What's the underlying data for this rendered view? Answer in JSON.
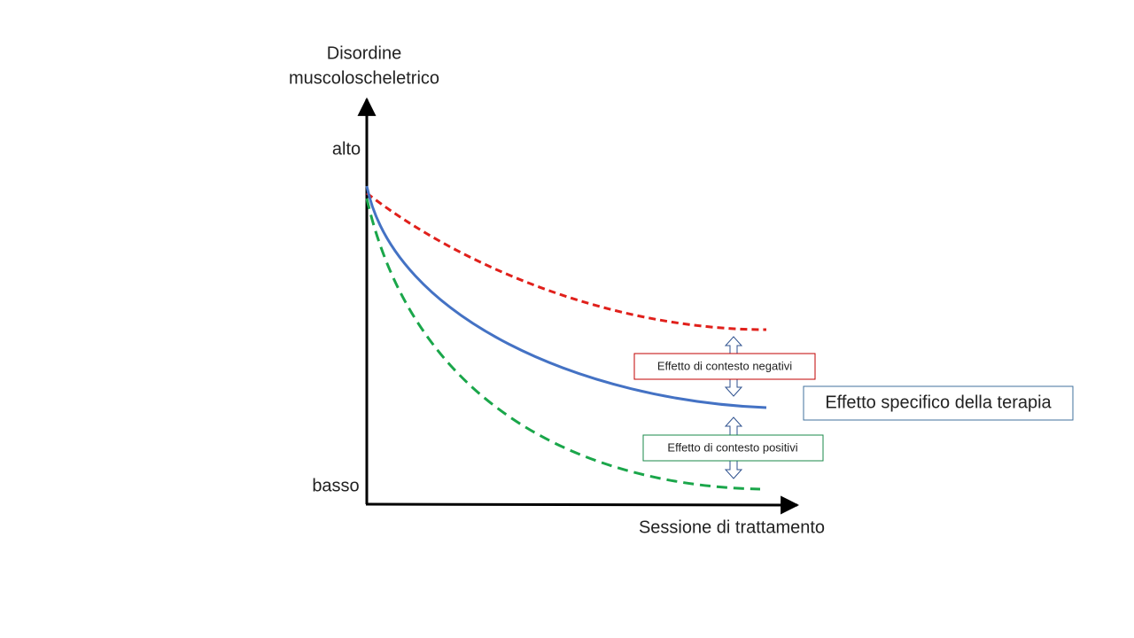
{
  "axes": {
    "y_label": [
      "Disordine",
      "muscoloscheletrico"
    ],
    "y_high": "alto",
    "y_low": "basso",
    "x_label": "Sessione di trattamento"
  },
  "annotations": {
    "negative": "Effetto di contesto  negativi",
    "specific": "Effetto specifico della terapia",
    "positive": "Effetto di contesto  positivi"
  }
}
